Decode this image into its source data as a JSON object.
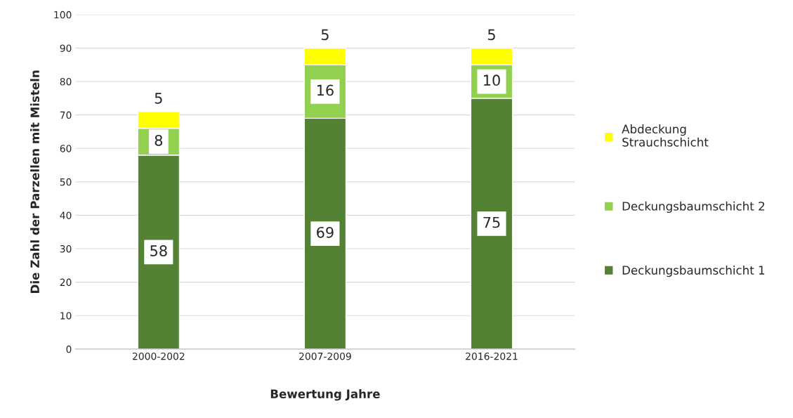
{
  "chart_data": {
    "type": "bar",
    "stacked": true,
    "xlabel": "Bewertung Jahre",
    "ylabel": "Die Zahl der Parzellen mit Misteln",
    "categories": [
      "2000-2002",
      "2007-2009",
      "2016-2021"
    ],
    "series": [
      {
        "name": "Deckungsbaumschicht 1",
        "color": "#548235",
        "values": [
          58,
          69,
          75
        ]
      },
      {
        "name": "Deckungsbaumschicht 2",
        "color": "#92d050",
        "values": [
          8,
          16,
          10
        ]
      },
      {
        "name": "Abdeckung\nStrauchschicht",
        "color": "#ffff00",
        "values": [
          5,
          5,
          5
        ]
      }
    ],
    "ylim": [
      0,
      100
    ],
    "yticks": [
      0,
      10,
      20,
      30,
      40,
      50,
      60,
      70,
      80,
      90,
      100
    ],
    "grid": "y",
    "legend": "right",
    "data_labels": true
  }
}
